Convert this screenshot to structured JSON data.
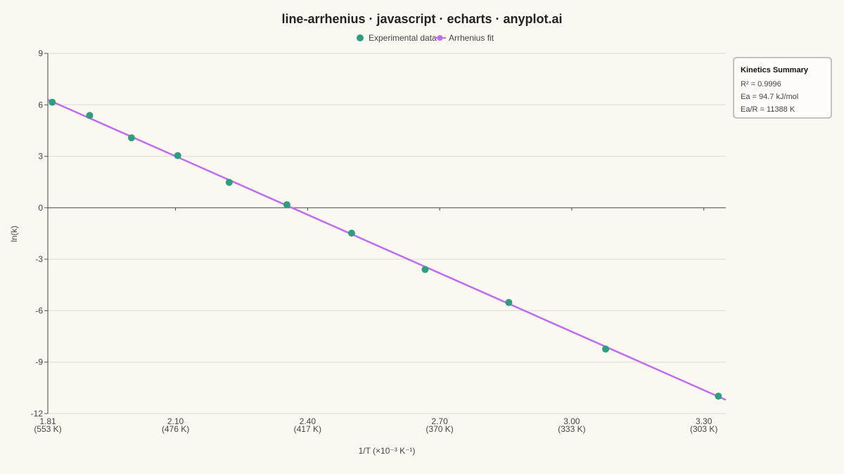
{
  "chart_data": {
    "type": "line",
    "title": "line-arrhenius · javascript · echarts · anyplot.ai",
    "xlabel": "1/T  (×10⁻³ K⁻¹)",
    "ylabel": "ln(k)",
    "xlim": [
      1.81,
      3.35
    ],
    "ylim": [
      -12,
      9
    ],
    "x_ticks": [
      {
        "value": 1.81,
        "label": "1.81",
        "sub": "(553 K)"
      },
      {
        "value": 2.1,
        "label": "2.10",
        "sub": "(476 K)"
      },
      {
        "value": 2.4,
        "label": "2.40",
        "sub": "(417 K)"
      },
      {
        "value": 2.7,
        "label": "2.70",
        "sub": "(370 K)"
      },
      {
        "value": 3.0,
        "label": "3.00",
        "sub": "(333 K)"
      },
      {
        "value": 3.3,
        "label": "3.30",
        "sub": "(303 K)"
      }
    ],
    "y_ticks": [
      9,
      6,
      3,
      0,
      -3,
      -6,
      -9,
      -12
    ],
    "grid": true,
    "legend_position": "top-center",
    "series": [
      {
        "name": "Experimental data",
        "type": "scatter",
        "color": "#2E9E7E",
        "x": [
          1.82,
          1.905,
          2.0,
          2.105,
          2.222,
          2.353,
          2.5,
          2.667,
          2.857,
          3.077,
          3.333
        ],
        "y": [
          6.15,
          5.38,
          4.08,
          3.04,
          1.48,
          0.18,
          -1.48,
          -3.6,
          -5.52,
          -8.24,
          -10.98
        ]
      },
      {
        "name": "Arrhenius fit",
        "type": "line",
        "color": "#C06BF0",
        "x": [
          1.81,
          3.35
        ],
        "y": [
          6.3,
          -11.2
        ]
      }
    ],
    "annotation": {
      "title": "Kinetics Summary",
      "lines": [
        "R² = 0.9996",
        "Ea = 94.7 kJ/mol",
        "Ea/R = 11388 K"
      ]
    }
  }
}
